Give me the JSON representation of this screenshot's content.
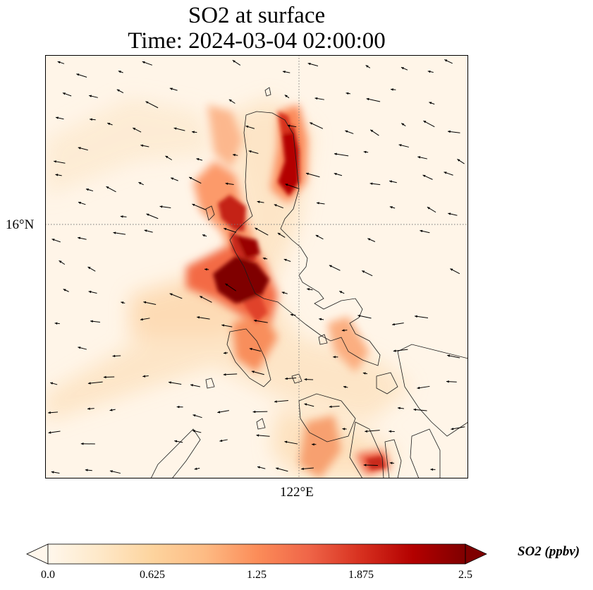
{
  "title": {
    "line1": "SO2 at surface",
    "line2": "Time: 2024-03-04 02:00:00"
  },
  "axes": {
    "lat_label": "16°N",
    "lon_label": "122°E"
  },
  "colorbar": {
    "label": "SO2 (ppbv)",
    "min": 0.0,
    "max": 2.5,
    "ticks": [
      "0.0",
      "0.625",
      "1.25",
      "1.875",
      "2.5"
    ],
    "tick_values": [
      0.0,
      0.625,
      1.25,
      1.875,
      2.5
    ],
    "colormap": "OrRd",
    "stops": [
      "#fff7ec",
      "#fee8c8",
      "#fdd49e",
      "#fdbb84",
      "#fc8d59",
      "#ef6548",
      "#d7301f",
      "#b30000",
      "#7f0000"
    ],
    "extend": "both"
  },
  "map": {
    "background_color": "#fff5e8",
    "gridline_style": "dotted",
    "features": [
      "coastlines",
      "wind-vectors",
      "so2-concentration"
    ]
  }
}
